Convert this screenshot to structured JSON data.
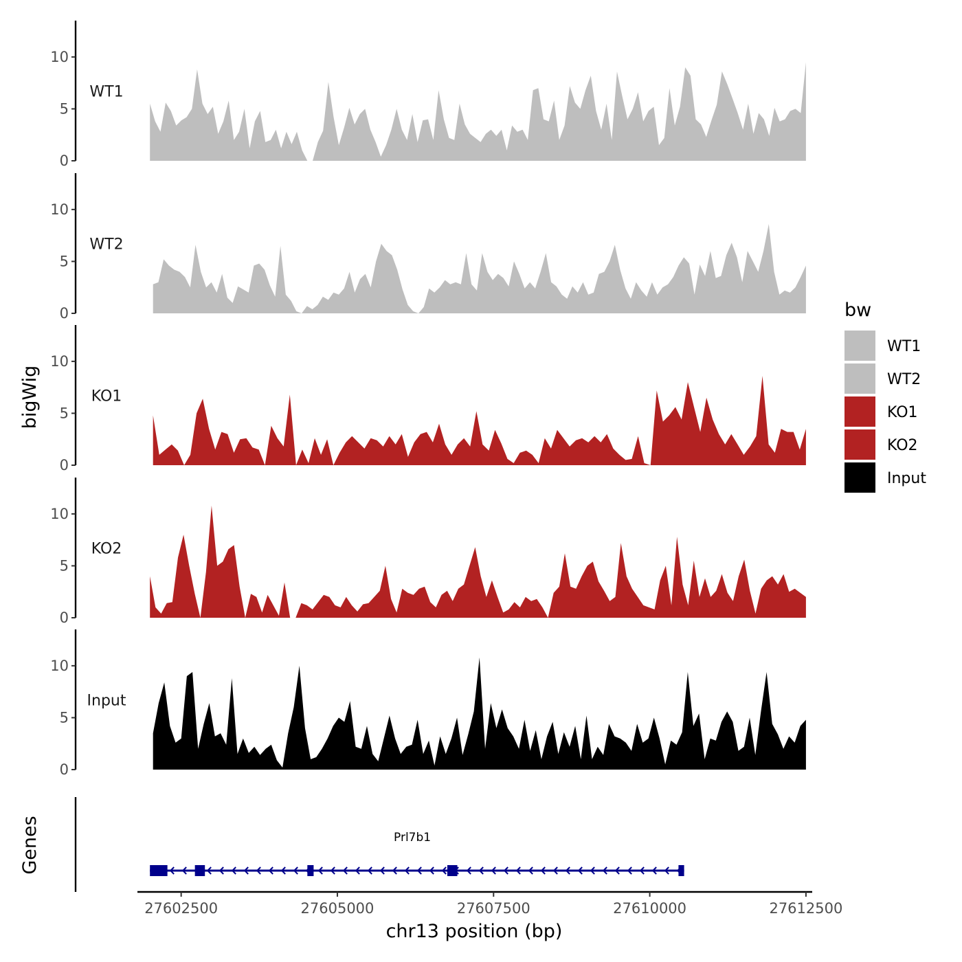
{
  "chart_data": {
    "type": "area",
    "ylabel": "bigWig",
    "xlabel": "chr13 position (bp)",
    "xlim": [
      27601800,
      27612600
    ],
    "ylim": [
      0,
      13.5
    ],
    "yticks": [
      0,
      5,
      10
    ],
    "xticks": [
      27602500,
      27605000,
      27607500,
      27610000,
      27612500
    ],
    "xtick_labels": [
      "27602500",
      "27605000",
      "27607500",
      "27610000",
      "27612500"
    ],
    "legend": {
      "title": "bw",
      "placement": "right",
      "entries": [
        {
          "label": "WT1",
          "color": "#bebebe"
        },
        {
          "label": "WT2",
          "color": "#bebebe"
        },
        {
          "label": "KO1",
          "color": "#b22222"
        },
        {
          "label": "KO2",
          "color": "#b22222"
        },
        {
          "label": "Input",
          "color": "#000000"
        }
      ]
    },
    "series": [
      {
        "name": "WT1",
        "color": "#bebebe",
        "x_start": 27602000,
        "x_end": 27612500,
        "values": [
          5.5,
          3.8,
          2.8,
          5.6,
          4.8,
          3.4,
          3.9,
          4.2,
          5.0,
          8.8,
          5.5,
          4.5,
          5.2,
          2.6,
          3.8,
          5.8,
          2.0,
          2.8,
          5.0,
          1.2,
          3.8,
          4.8,
          1.8,
          2.0,
          3.0,
          1.2,
          2.8,
          1.6,
          2.8,
          1.0,
          0.0,
          0.0,
          1.8,
          2.9,
          7.6,
          4.2,
          1.5,
          3.2,
          5.1,
          3.5,
          4.5,
          5.0,
          3.0,
          1.8,
          0.4,
          1.5,
          3.0,
          5.0,
          3.0,
          2.0,
          4.5,
          1.8,
          3.9,
          4.0,
          2.0,
          6.8,
          4.0,
          2.2,
          2.0,
          5.5,
          3.5,
          2.6,
          2.2,
          1.8,
          2.6,
          3.0,
          2.4,
          3.0,
          1.0,
          3.4,
          2.8,
          3.0,
          2.0,
          6.8,
          7.0,
          4.0,
          3.8,
          5.8,
          2.0,
          3.4,
          7.2,
          5.6,
          5.0,
          6.8,
          8.2,
          4.8,
          3.0,
          5.5,
          2.0,
          8.6,
          6.2,
          4.0,
          5.0,
          6.6,
          3.8,
          4.8,
          5.2,
          1.5,
          2.2,
          7.0,
          3.4,
          5.2,
          9.0,
          8.2,
          4.0,
          3.5,
          2.3,
          3.9,
          5.4,
          8.6,
          7.4,
          6.0,
          4.6,
          3.0,
          5.5,
          2.6,
          4.6,
          4.0,
          2.4,
          5.1,
          3.8,
          4.0,
          4.8,
          5.0,
          4.6,
          9.5
        ]
      },
      {
        "name": "WT2",
        "color": "#bebebe",
        "x_start": 27602050,
        "x_end": 27612500,
        "values": [
          2.8,
          3.0,
          5.2,
          4.6,
          4.2,
          4.0,
          3.5,
          2.5,
          6.6,
          4.0,
          2.5,
          3.0,
          2.0,
          3.8,
          1.5,
          1.0,
          2.6,
          2.3,
          2.0,
          4.6,
          4.8,
          4.2,
          2.7,
          1.6,
          6.5,
          1.8,
          1.2,
          0.2,
          0.0,
          0.7,
          0.4,
          0.8,
          1.6,
          1.3,
          2.0,
          1.8,
          2.4,
          4.0,
          2.0,
          3.3,
          3.8,
          2.5,
          5.0,
          6.7,
          6.0,
          5.6,
          4.2,
          2.3,
          0.8,
          0.2,
          0.0,
          0.6,
          2.4,
          2.0,
          2.5,
          3.2,
          2.8,
          3.0,
          2.8,
          5.8,
          2.8,
          2.2,
          5.8,
          4.0,
          3.2,
          3.8,
          3.4,
          2.6,
          5.0,
          3.8,
          2.4,
          3.0,
          2.4,
          4.0,
          5.8,
          3.0,
          2.6,
          1.8,
          1.4,
          2.6,
          2.0,
          3.0,
          1.8,
          2.0,
          3.8,
          4.0,
          5.0,
          6.6,
          4.2,
          2.4,
          1.4,
          3.0,
          2.2,
          1.6,
          3.0,
          1.8,
          2.5,
          2.8,
          3.5,
          4.6,
          5.4,
          4.8,
          1.8,
          4.7,
          3.6,
          6.0,
          3.4,
          3.6,
          5.6,
          6.8,
          5.4,
          3.0,
          6.0,
          5.0,
          4.0,
          6.0,
          8.6,
          4.0,
          1.8,
          2.2,
          2.0,
          2.5,
          3.5,
          4.6
        ]
      },
      {
        "name": "KO1",
        "color": "#b22222",
        "x_start": 27602050,
        "x_end": 27612500,
        "values": [
          4.8,
          1.0,
          1.5,
          2.0,
          1.4,
          0.0,
          1.0,
          5.0,
          6.4,
          3.5,
          1.5,
          3.2,
          3.0,
          1.2,
          2.5,
          2.6,
          1.7,
          1.5,
          0.0,
          3.8,
          2.6,
          1.8,
          6.8,
          0.0,
          1.5,
          0.2,
          2.6,
          1.0,
          2.5,
          0.0,
          1.2,
          2.2,
          2.8,
          2.2,
          1.6,
          2.6,
          2.4,
          1.8,
          2.8,
          2.0,
          3.0,
          0.8,
          2.2,
          3.0,
          3.2,
          2.2,
          4.0,
          2.0,
          1.0,
          2.0,
          2.6,
          1.8,
          5.2,
          2.0,
          1.4,
          3.4,
          2.1,
          0.6,
          0.2,
          1.2,
          1.4,
          1.0,
          0.2,
          2.6,
          1.6,
          3.4,
          2.6,
          1.8,
          2.4,
          2.6,
          2.2,
          2.8,
          2.2,
          3.0,
          1.6,
          1.0,
          0.5,
          0.6,
          2.8,
          0.2,
          0.0,
          7.2,
          4.2,
          4.8,
          5.6,
          4.4,
          8.0,
          5.6,
          3.2,
          6.5,
          4.4,
          3.0,
          2.0,
          3.0,
          2.0,
          1.0,
          1.8,
          2.8,
          8.6,
          2.0,
          1.2,
          3.5,
          3.2,
          3.2,
          1.5,
          3.5
        ]
      },
      {
        "name": "KO2",
        "color": "#b22222",
        "x_start": 27602000,
        "x_end": 27612500,
        "values": [
          4.0,
          1.0,
          0.4,
          1.4,
          1.5,
          5.8,
          8.0,
          5.0,
          2.3,
          0.0,
          4.4,
          10.8,
          5.0,
          5.4,
          6.6,
          7.0,
          3.0,
          0.0,
          2.3,
          2.0,
          0.5,
          2.2,
          1.2,
          0.2,
          3.4,
          0.0,
          0.0,
          1.4,
          1.2,
          0.8,
          1.5,
          2.2,
          2.0,
          1.2,
          1.0,
          2.0,
          1.2,
          0.6,
          1.3,
          1.4,
          2.0,
          2.6,
          5.0,
          1.8,
          0.5,
          2.8,
          2.4,
          2.2,
          2.8,
          3.0,
          1.5,
          1.0,
          2.2,
          2.6,
          1.6,
          2.8,
          3.2,
          5.0,
          6.8,
          4.0,
          2.0,
          3.6,
          2.0,
          0.5,
          0.8,
          1.5,
          1.0,
          2.0,
          1.6,
          1.8,
          1.0,
          0.0,
          2.4,
          3.0,
          6.2,
          3.0,
          2.8,
          4.0,
          5.0,
          5.4,
          3.5,
          2.6,
          1.6,
          2.0,
          7.2,
          4.0,
          2.8,
          2.0,
          1.2,
          1.0,
          0.8,
          3.6,
          5.0,
          1.2,
          7.8,
          3.2,
          1.2,
          5.5,
          2.0,
          3.8,
          2.0,
          2.6,
          4.2,
          2.4,
          1.6,
          4.0,
          5.6,
          2.6,
          0.4,
          2.8,
          3.6,
          4.0,
          3.2,
          4.2,
          2.5,
          2.8,
          2.4,
          2.0
        ]
      },
      {
        "name": "Input",
        "color": "#000000",
        "x_start": 27602050,
        "x_end": 27612500,
        "values": [
          3.5,
          6.4,
          8.4,
          4.2,
          2.6,
          3.0,
          9.0,
          9.4,
          2.0,
          4.4,
          6.4,
          3.2,
          3.5,
          2.4,
          8.8,
          1.5,
          3.0,
          1.6,
          2.2,
          1.4,
          2.0,
          2.4,
          0.9,
          0.2,
          3.5,
          6.0,
          10.0,
          4.0,
          1.0,
          1.2,
          2.0,
          3.0,
          4.2,
          5.0,
          4.6,
          6.6,
          2.2,
          2.0,
          4.2,
          1.5,
          0.8,
          3.0,
          5.2,
          3.0,
          1.5,
          2.2,
          2.4,
          4.8,
          1.5,
          2.8,
          0.4,
          3.2,
          1.5,
          3.0,
          5.0,
          1.4,
          3.4,
          5.6,
          10.8,
          2.0,
          6.4,
          4.0,
          5.8,
          4.0,
          3.2,
          2.0,
          4.8,
          1.8,
          3.8,
          1.0,
          3.2,
          4.6,
          1.5,
          3.6,
          2.2,
          4.2,
          1.0,
          5.2,
          1.0,
          2.2,
          1.4,
          4.4,
          3.2,
          3.0,
          2.6,
          1.8,
          4.4,
          2.6,
          3.0,
          5.0,
          3.0,
          0.5,
          2.8,
          2.4,
          3.6,
          9.4,
          4.2,
          5.4,
          1.0,
          3.0,
          2.8,
          4.6,
          5.6,
          4.6,
          1.8,
          2.2,
          5.0,
          1.4,
          5.6,
          9.4,
          4.4,
          3.4,
          2.0,
          3.2,
          2.6,
          4.2,
          4.8
        ]
      }
    ],
    "genes": [
      {
        "name": "Prl7b1",
        "strand": "-",
        "start": 27602000,
        "end": 27610550,
        "exons": [
          [
            27602000,
            27602280
          ],
          [
            27602720,
            27602880
          ],
          [
            27604520,
            27604620
          ],
          [
            27606760,
            27606920
          ],
          [
            27610460,
            27610550
          ]
        ]
      }
    ],
    "genes_panel_label": "Genes"
  }
}
